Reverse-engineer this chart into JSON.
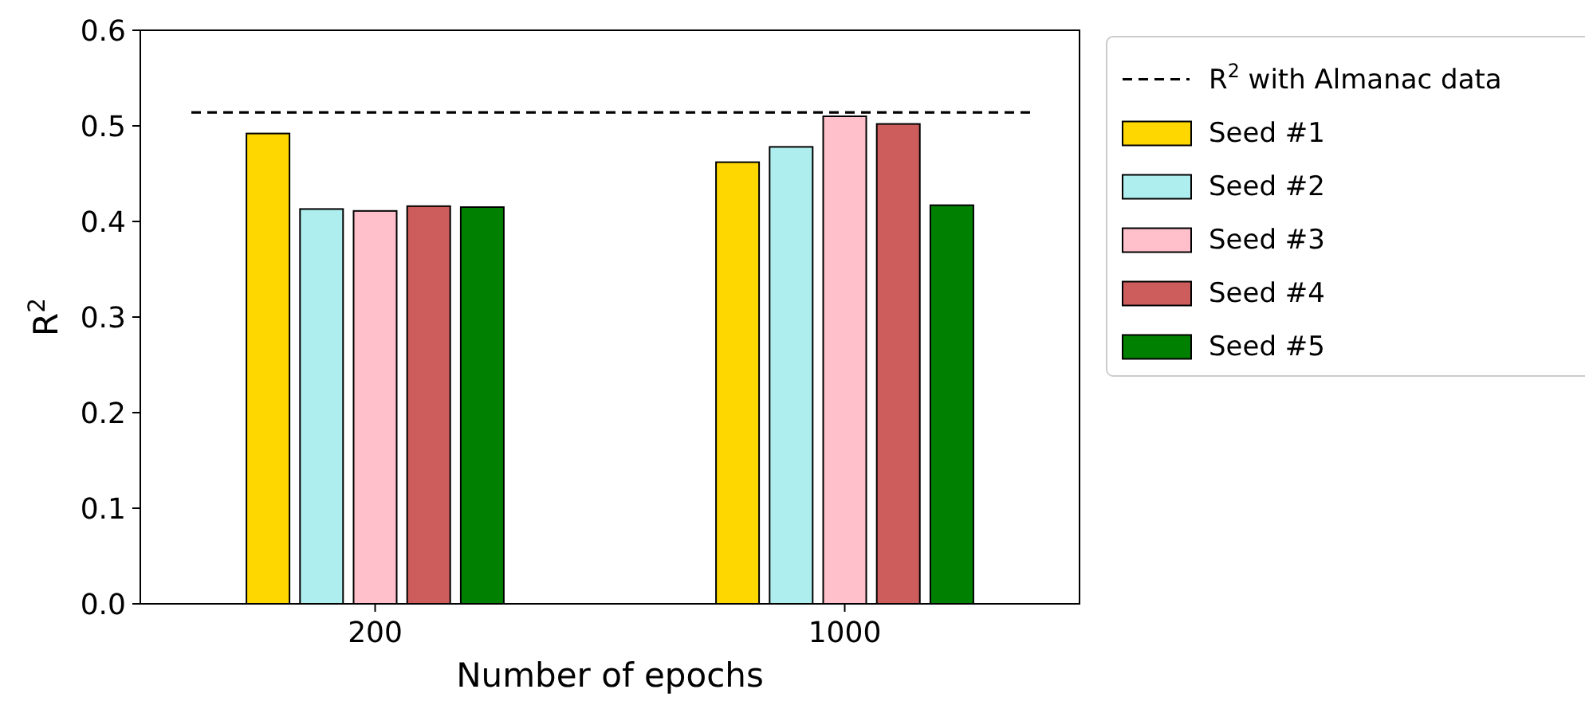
{
  "chart_data": {
    "type": "bar",
    "xlabel": "Number of epochs",
    "ylabel": "R$^{2}$",
    "categories": [
      "200",
      "1000"
    ],
    "series": [
      {
        "name": "Seed #1",
        "color": "#ffd700",
        "values": [
          0.492,
          0.462
        ]
      },
      {
        "name": "Seed #2",
        "color": "#afeeee",
        "values": [
          0.413,
          0.478
        ]
      },
      {
        "name": "Seed #3",
        "color": "#ffc0cb",
        "values": [
          0.411,
          0.51
        ]
      },
      {
        "name": "Seed #4",
        "color": "#cd5c5c",
        "values": [
          0.416,
          0.502
        ]
      },
      {
        "name": "Seed #5",
        "color": "#008000",
        "values": [
          0.415,
          0.417
        ]
      }
    ],
    "ylim": [
      0,
      0.6
    ],
    "yticks": [
      {
        "value": 0,
        "label": "0.0"
      },
      0.1,
      0.2,
      0.3,
      0.4,
      0.5,
      0.6
    ],
    "ref_lines": [
      {
        "axis": "y",
        "value": 0.514,
        "label": "R$^{2}$ with Almanac data",
        "color": "#000000",
        "line_style": "dashed"
      }
    ],
    "legend": "top right",
    "grid": false
  }
}
